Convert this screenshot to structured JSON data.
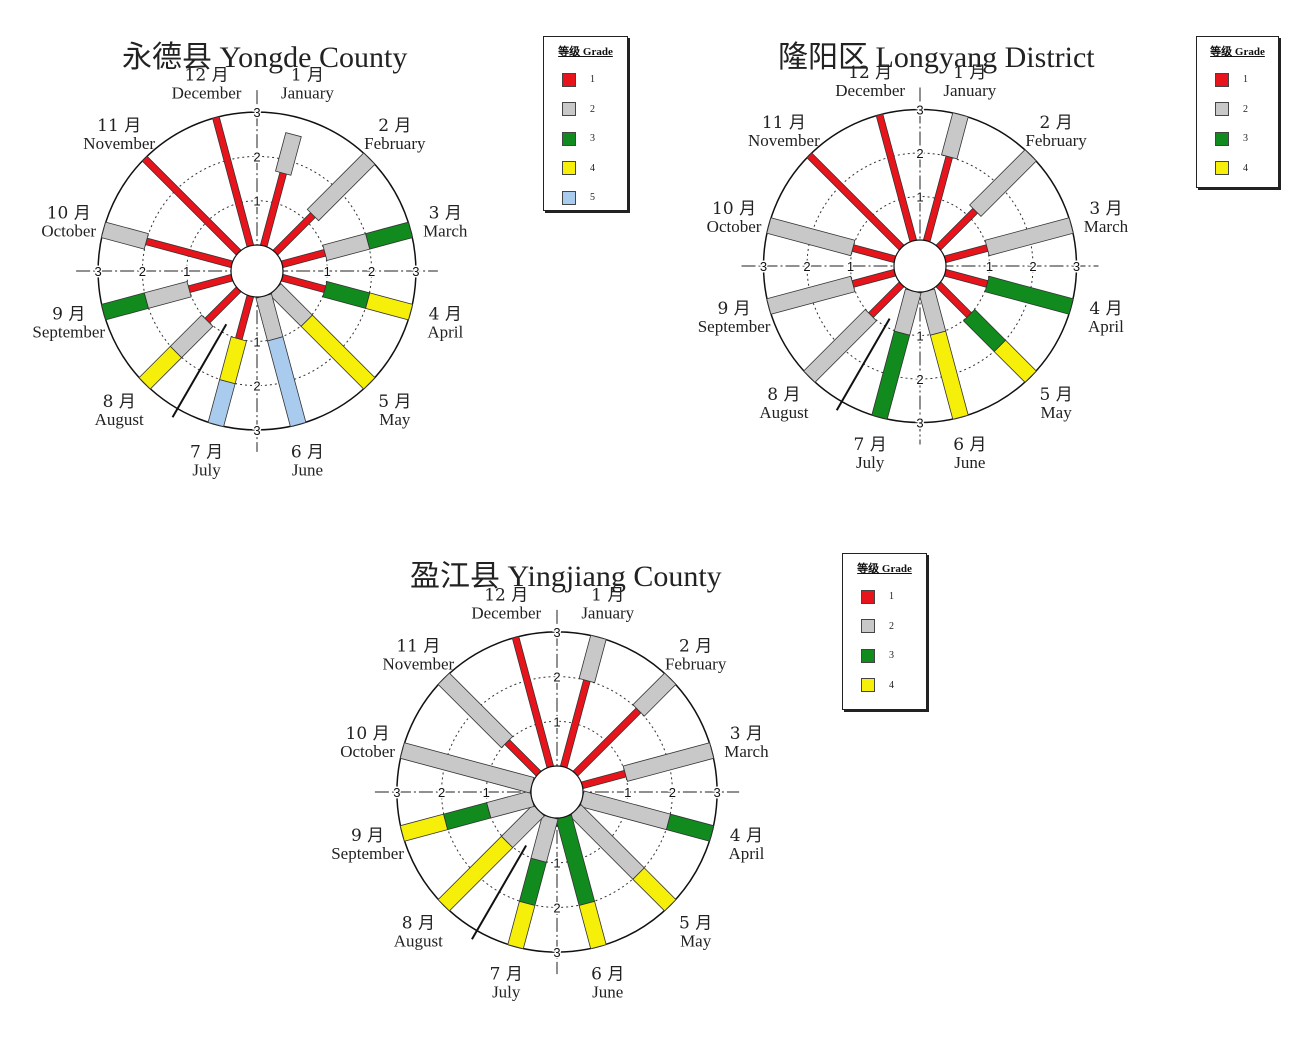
{
  "legend": {
    "title": "等级 Grade"
  },
  "grade_colors": {
    "1": "#e8141c",
    "2": "#c8c8c8",
    "3": "#118a1e",
    "4": "#f6ef0a",
    "5": "#a9cbee"
  },
  "chart_data": [
    {
      "type": "radial-bar",
      "title": "永德县 Yongde County",
      "axis_ticks": [
        "1",
        "2",
        "3"
      ],
      "rmax": 3,
      "months": [
        {
          "cn": "1 月",
          "en": "January",
          "segments": [
            {
              "grade": 1,
              "length": 1.7
            },
            {
              "grade": 2,
              "length": 0.9
            }
          ]
        },
        {
          "cn": "2 月",
          "en": "February",
          "segments": [
            {
              "grade": 1,
              "length": 1.2
            },
            {
              "grade": 2,
              "length": 1.8
            }
          ]
        },
        {
          "cn": "3 月",
          "en": "March",
          "segments": [
            {
              "grade": 1,
              "length": 1.0
            },
            {
              "grade": 2,
              "length": 1.0
            },
            {
              "grade": 3,
              "length": 1.0
            }
          ]
        },
        {
          "cn": "4 月",
          "en": "April",
          "segments": [
            {
              "grade": 1,
              "length": 1.0
            },
            {
              "grade": 3,
              "length": 1.0
            },
            {
              "grade": 4,
              "length": 1.0
            }
          ]
        },
        {
          "cn": "5 月",
          "en": "May",
          "segments": [
            {
              "grade": 2,
              "length": 1.0
            },
            {
              "grade": 4,
              "length": 2.0
            }
          ]
        },
        {
          "cn": "6 月",
          "en": "June",
          "segments": [
            {
              "grade": 2,
              "length": 1.0
            },
            {
              "grade": 5,
              "length": 2.0
            }
          ]
        },
        {
          "cn": "7 月",
          "en": "July",
          "segments": [
            {
              "grade": 1,
              "length": 1.0
            },
            {
              "grade": 4,
              "length": 1.0
            },
            {
              "grade": 5,
              "length": 1.0
            }
          ]
        },
        {
          "cn": "8 月",
          "en": "August",
          "segments": [
            {
              "grade": 1,
              "length": 1.0
            },
            {
              "grade": 2,
              "length": 1.0
            },
            {
              "grade": 4,
              "length": 1.0
            }
          ]
        },
        {
          "cn": "9 月",
          "en": "September",
          "segments": [
            {
              "grade": 1,
              "length": 1.0
            },
            {
              "grade": 2,
              "length": 1.0
            },
            {
              "grade": 3,
              "length": 1.0
            }
          ]
        },
        {
          "cn": "10 月",
          "en": "October",
          "segments": [
            {
              "grade": 1,
              "length": 2.0
            },
            {
              "grade": 2,
              "length": 1.0
            }
          ]
        },
        {
          "cn": "11 月",
          "en": "November",
          "segments": [
            {
              "grade": 1,
              "length": 3.0
            }
          ]
        },
        {
          "cn": "12 月",
          "en": "December",
          "segments": [
            {
              "grade": 1,
              "length": 3.0
            }
          ]
        }
      ],
      "legend_grades": [
        1,
        2,
        3,
        4,
        5
      ]
    },
    {
      "type": "radial-bar",
      "title": "隆阳区 Longyang District",
      "axis_ticks": [
        "1",
        "2",
        "3"
      ],
      "rmax": 3,
      "months": [
        {
          "cn": "1 月",
          "en": "January",
          "segments": [
            {
              "grade": 1,
              "length": 2.0
            },
            {
              "grade": 2,
              "length": 1.0
            }
          ]
        },
        {
          "cn": "2 月",
          "en": "February",
          "segments": [
            {
              "grade": 1,
              "length": 1.2
            },
            {
              "grade": 2,
              "length": 1.8
            }
          ]
        },
        {
          "cn": "3 月",
          "en": "March",
          "segments": [
            {
              "grade": 1,
              "length": 1.0
            },
            {
              "grade": 2,
              "length": 2.0
            }
          ]
        },
        {
          "cn": "4 月",
          "en": "April",
          "segments": [
            {
              "grade": 1,
              "length": 1.0
            },
            {
              "grade": 3,
              "length": 2.0
            }
          ]
        },
        {
          "cn": "5 月",
          "en": "May",
          "segments": [
            {
              "grade": 1,
              "length": 1.0
            },
            {
              "grade": 3,
              "length": 1.0
            },
            {
              "grade": 4,
              "length": 1.0
            }
          ]
        },
        {
          "cn": "6 月",
          "en": "June",
          "segments": [
            {
              "grade": 2,
              "length": 1.0
            },
            {
              "grade": 4,
              "length": 2.0
            }
          ]
        },
        {
          "cn": "7 月",
          "en": "July",
          "segments": [
            {
              "grade": 2,
              "length": 1.0
            },
            {
              "grade": 3,
              "length": 2.0
            }
          ]
        },
        {
          "cn": "8 月",
          "en": "August",
          "segments": [
            {
              "grade": 1,
              "length": 1.0
            },
            {
              "grade": 2,
              "length": 2.0
            }
          ]
        },
        {
          "cn": "9 月",
          "en": "September",
          "segments": [
            {
              "grade": 1,
              "length": 1.0
            },
            {
              "grade": 2,
              "length": 2.0
            }
          ]
        },
        {
          "cn": "10 月",
          "en": "October",
          "segments": [
            {
              "grade": 1,
              "length": 1.0
            },
            {
              "grade": 2,
              "length": 2.0
            }
          ]
        },
        {
          "cn": "11 月",
          "en": "November",
          "segments": [
            {
              "grade": 1,
              "length": 3.0
            }
          ]
        },
        {
          "cn": "12 月",
          "en": "December",
          "segments": [
            {
              "grade": 1,
              "length": 3.0
            }
          ]
        }
      ],
      "legend_grades": [
        1,
        2,
        3,
        4
      ]
    },
    {
      "type": "radial-bar",
      "title": "盈江县 Yingjiang County",
      "axis_ticks": [
        "1",
        "2",
        "3"
      ],
      "rmax": 3,
      "months": [
        {
          "cn": "1 月",
          "en": "January",
          "segments": [
            {
              "grade": 1,
              "length": 2.0
            },
            {
              "grade": 2,
              "length": 1.0
            }
          ]
        },
        {
          "cn": "2 月",
          "en": "February",
          "segments": [
            {
              "grade": 1,
              "length": 2.0
            },
            {
              "grade": 2,
              "length": 1.0
            }
          ]
        },
        {
          "cn": "3 月",
          "en": "March",
          "segments": [
            {
              "grade": 1,
              "length": 1.0
            },
            {
              "grade": 2,
              "length": 2.0
            }
          ]
        },
        {
          "cn": "4 月",
          "en": "April",
          "segments": [
            {
              "grade": 2,
              "length": 2.0
            },
            {
              "grade": 3,
              "length": 1.0
            }
          ]
        },
        {
          "cn": "5 月",
          "en": "May",
          "segments": [
            {
              "grade": 2,
              "length": 2.0
            },
            {
              "grade": 4,
              "length": 1.0
            }
          ]
        },
        {
          "cn": "6 月",
          "en": "June",
          "segments": [
            {
              "grade": 3,
              "length": 2.0
            },
            {
              "grade": 4,
              "length": 1.0
            }
          ]
        },
        {
          "cn": "7 月",
          "en": "July",
          "segments": [
            {
              "grade": 2,
              "length": 1.0
            },
            {
              "grade": 3,
              "length": 1.0
            },
            {
              "grade": 4,
              "length": 1.0
            }
          ]
        },
        {
          "cn": "8 月",
          "en": "August",
          "segments": [
            {
              "grade": 2,
              "length": 1.0
            },
            {
              "grade": 4,
              "length": 2.0
            }
          ]
        },
        {
          "cn": "9 月",
          "en": "September",
          "segments": [
            {
              "grade": 2,
              "length": 1.0
            },
            {
              "grade": 3,
              "length": 1.0
            },
            {
              "grade": 4,
              "length": 1.0
            }
          ]
        },
        {
          "cn": "10 月",
          "en": "October",
          "segments": [
            {
              "grade": 2,
              "length": 3.0
            }
          ]
        },
        {
          "cn": "11 月",
          "en": "November",
          "segments": [
            {
              "grade": 1,
              "length": 1.0
            },
            {
              "grade": 2,
              "length": 2.0
            }
          ]
        },
        {
          "cn": "12 月",
          "en": "December",
          "segments": [
            {
              "grade": 1,
              "length": 3.0
            }
          ]
        }
      ],
      "legend_grades": [
        1,
        2,
        3,
        4
      ]
    }
  ]
}
